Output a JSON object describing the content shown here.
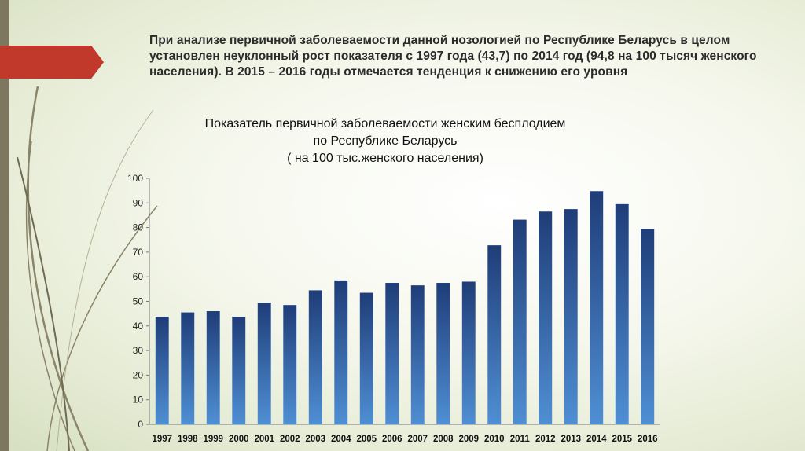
{
  "intro_text": "При анализе первичной заболеваемости данной нозологией по Республике Беларусь в целом установлен неуклонный рост показателя с 1997 года (43,7) по 2014 год (94,8 на 100 тысяч женского населения). В 2015 – 2016 годы отмечается тенденция к снижению его уровня",
  "colors": {
    "bar_top": "#1f3d78",
    "bar_bottom": "#4f8fd4",
    "accent": "#c0392b",
    "band": "#7e775f"
  },
  "chart_data": {
    "type": "bar",
    "title_lines": [
      "Показатель первичной заболеваемости женским бесплодием",
      "по Республике Беларусь",
      "( на 100 тыс.женского населения)"
    ],
    "categories": [
      "1997",
      "1998",
      "1999",
      "2000",
      "2001",
      "2002",
      "2003",
      "2004",
      "2005",
      "2006",
      "2007",
      "2008",
      "2009",
      "2010",
      "2011",
      "2012",
      "2013",
      "2014",
      "2015",
      "2016"
    ],
    "values": [
      43.7,
      45.5,
      46,
      43.7,
      49.5,
      48.5,
      54.5,
      58.5,
      53.5,
      57.5,
      56.5,
      57.5,
      58,
      72.8,
      83.2,
      86.5,
      87.5,
      94.8,
      89.5,
      79.5
    ],
    "ylim": [
      0,
      100
    ],
    "yticks": [
      0,
      10,
      20,
      30,
      40,
      50,
      60,
      70,
      80,
      90,
      100
    ],
    "grid": false,
    "legend": false
  }
}
